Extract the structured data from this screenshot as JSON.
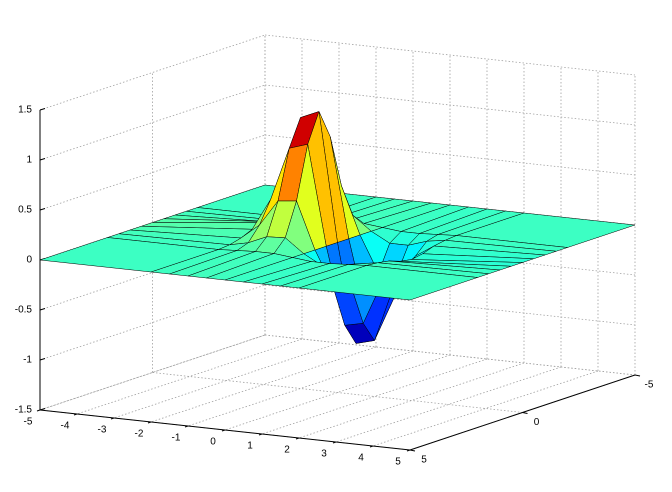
{
  "chart_data": {
    "type": "surface",
    "colormap": "jet",
    "edge_color": "#000000",
    "grid": true,
    "x": [
      -5,
      -2,
      -1.5,
      -1,
      -0.5,
      0,
      0.5,
      1,
      1.5,
      2,
      5
    ],
    "y": [
      -5,
      -2,
      -1.5,
      -1,
      -0.5,
      0,
      0.5,
      1,
      1.5,
      2,
      5
    ],
    "z": [
      [
        0,
        0,
        0,
        0,
        0,
        0,
        0,
        0,
        0,
        0,
        0
      ],
      [
        0,
        0,
        0.01,
        0.04,
        0.09,
        0.12,
        0.09,
        0.04,
        0.01,
        0,
        0
      ],
      [
        0,
        0.01,
        0.05,
        0.19,
        0.41,
        0.52,
        0.41,
        0.19,
        0.05,
        0.01,
        0
      ],
      [
        0,
        0.02,
        0.13,
        0.45,
        0.94,
        1.21,
        0.94,
        0.45,
        0.13,
        0.02,
        0
      ],
      [
        0,
        0.02,
        0.14,
        0.47,
        1,
        1.29,
        1,
        0.47,
        0.14,
        0.02,
        0
      ],
      [
        0,
        0,
        0,
        0,
        0,
        0,
        0,
        0,
        0,
        0,
        0
      ],
      [
        0,
        -0.02,
        -0.1,
        -0.36,
        -0.77,
        -0.99,
        -0.77,
        -0.36,
        -0.1,
        -0.02,
        0
      ],
      [
        0,
        -0.02,
        -0.1,
        -0.35,
        -0.73,
        -0.94,
        -0.73,
        -0.35,
        -0.1,
        -0.02,
        0
      ],
      [
        0,
        -0.01,
        -0.04,
        -0.15,
        -0.31,
        -0.4,
        -0.31,
        -0.15,
        -0.04,
        -0.01,
        0
      ],
      [
        0,
        0,
        -0.01,
        -0.03,
        -0.07,
        -0.09,
        -0.07,
        -0.03,
        -0.01,
        0,
        0
      ],
      [
        0,
        0,
        0,
        0,
        0,
        0,
        0,
        0,
        0,
        0,
        0
      ]
    ],
    "xlim": [
      -5,
      5
    ],
    "ylim": [
      -5,
      5
    ],
    "zlim": [
      -1.5,
      1.5
    ],
    "xticks": [
      -5,
      -4,
      -3,
      -2,
      -1,
      0,
      1,
      2,
      3,
      4,
      5
    ],
    "yticks": [
      -5,
      0,
      5
    ],
    "zticks": [
      -1.5,
      -1,
      -0.5,
      0,
      0.5,
      1,
      1.5
    ]
  }
}
